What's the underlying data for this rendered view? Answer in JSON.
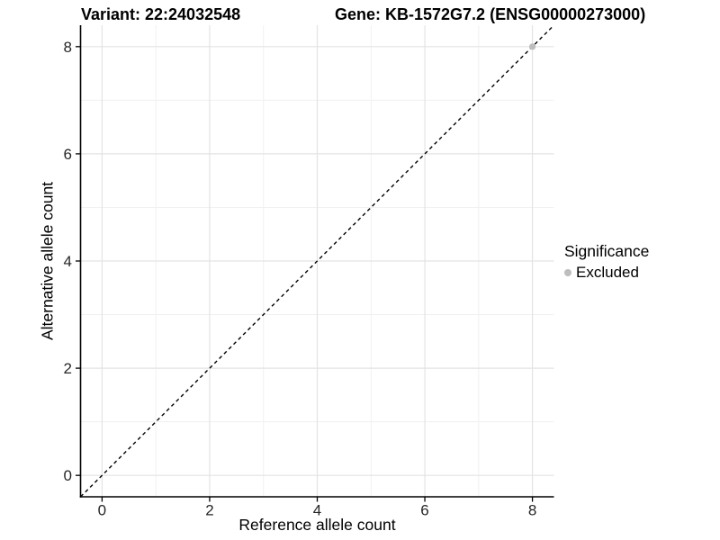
{
  "header": {
    "variant_title": "Variant: 22:24032548",
    "gene_title": "Gene: KB-1572G7.2 (ENSG00000273000)"
  },
  "legend": {
    "title": "Significance",
    "items": [
      {
        "label": "Excluded",
        "marker": "circle",
        "color": "#bdbdbd"
      }
    ]
  },
  "chart_data": {
    "type": "scatter",
    "title": [
      "Variant: 22:24032548",
      "Gene: KB-1572G7.2 (ENSG00000273000)"
    ],
    "xlabel": "Reference allele count",
    "ylabel": "Alternative allele count",
    "xlim": [
      -0.4,
      8.4
    ],
    "ylim": [
      -0.4,
      8.4
    ],
    "x_ticks": [
      0,
      2,
      4,
      6,
      8
    ],
    "y_ticks": [
      0,
      2,
      4,
      6,
      8
    ],
    "x_minor_ticks": [
      1,
      3,
      5,
      7
    ],
    "y_minor_ticks": [
      1,
      3,
      5,
      7
    ],
    "grid": "major+minor",
    "legend_position": "right",
    "reference_line": {
      "label": "y = x",
      "slope": 1,
      "intercept": 0,
      "style": "dashed",
      "color": "#000000"
    },
    "series": [
      {
        "name": "Excluded",
        "color": "#bdbdbd",
        "points": [
          {
            "x": 8,
            "y": 8
          }
        ]
      }
    ]
  },
  "colors": {
    "background": "#ffffff",
    "grid_major": "#e3e3e3",
    "grid_minor": "#f0f0f0",
    "axis": "#000000",
    "tick_text": "#262626",
    "title_text": "#000000"
  }
}
